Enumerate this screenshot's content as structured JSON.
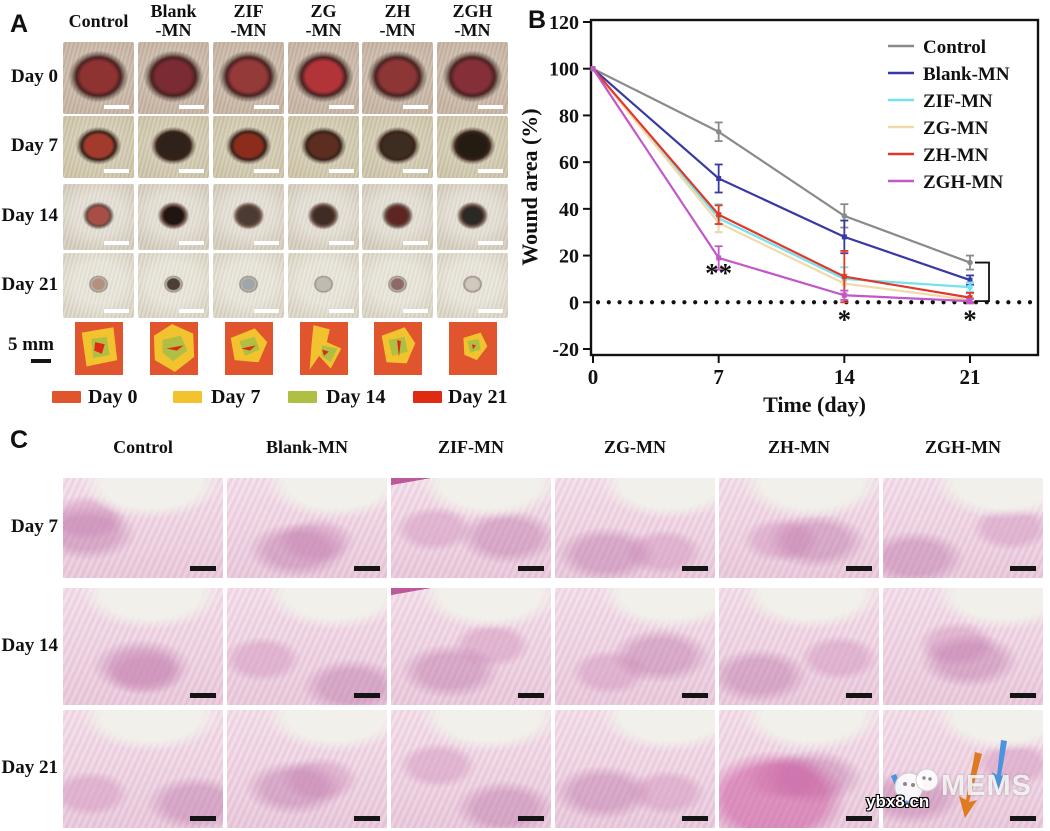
{
  "figure": {
    "panelA": {
      "label": "A",
      "row_labels": [
        "Day 0",
        "Day 7",
        "Day 14",
        "Day 21"
      ],
      "column_labels": [
        [
          "Control",
          ""
        ],
        [
          "Blank",
          "-MN"
        ],
        [
          "ZIF",
          "-MN"
        ],
        [
          "ZG",
          "-MN"
        ],
        [
          "ZH",
          "-MN"
        ],
        [
          "ZGH",
          "-MN"
        ]
      ],
      "scale_label": "5 mm",
      "trace_legend": [
        {
          "label": "Day 0",
          "color": "#e0542e"
        },
        {
          "label": "Day 7",
          "color": "#f2c32e"
        },
        {
          "label": "Day 14",
          "color": "#aebf44"
        },
        {
          "label": "Day 21",
          "color": "#df2b12"
        }
      ]
    },
    "panelB": {
      "label": "B"
    },
    "panelC": {
      "label": "C",
      "row_labels": [
        "Day 7",
        "Day 14",
        "Day 21"
      ],
      "column_labels": [
        "Control",
        "Blank-MN",
        "ZIF-MN",
        "ZG-MN",
        "ZH-MN",
        "ZGH-MN"
      ]
    },
    "watermark": {
      "logo": "panda-logo",
      "brand": "MEMS",
      "site": "ybx8.cn"
    }
  },
  "chart_data": {
    "type": "line",
    "title": "",
    "x": [
      0,
      7,
      14,
      21
    ],
    "xlabel": "Time (day)",
    "ylabel": "Wound area (%)",
    "xticks": [
      0,
      7,
      14,
      21
    ],
    "yticks": [
      -20,
      0,
      20,
      40,
      60,
      80,
      100,
      120
    ],
    "ylim": [
      -20,
      120
    ],
    "grid": false,
    "legend_position": "top-right",
    "baseline": {
      "y": 0,
      "style": "dotted"
    },
    "series": [
      {
        "name": "Control",
        "color": "#8a8a8a",
        "marker": "circle",
        "values": [
          100,
          73,
          37,
          17
        ],
        "errors": [
          0,
          4,
          5,
          3
        ]
      },
      {
        "name": "Blank-MN",
        "color": "#3939a3",
        "marker": "square",
        "values": [
          100,
          53,
          28,
          9.5
        ],
        "errors": [
          0,
          6,
          7,
          2
        ]
      },
      {
        "name": "ZIF-MN",
        "color": "#72e2ec",
        "marker": "square",
        "values": [
          100,
          36,
          10,
          6.5
        ],
        "errors": [
          0,
          6,
          5,
          2
        ]
      },
      {
        "name": "ZG-MN",
        "color": "#f1d9a9",
        "marker": "square",
        "values": [
          100,
          34,
          8,
          1
        ],
        "errors": [
          0,
          4,
          4,
          1
        ]
      },
      {
        "name": "ZH-MN",
        "color": "#e0382b",
        "marker": "square",
        "values": [
          100,
          37.5,
          11,
          2
        ],
        "errors": [
          0,
          4,
          11,
          2
        ]
      },
      {
        "name": "ZGH-MN",
        "color": "#c257c9",
        "marker": "square",
        "values": [
          100,
          19,
          3,
          0.5
        ],
        "errors": [
          0,
          5,
          2,
          1
        ]
      }
    ],
    "annotations": [
      {
        "text": "**",
        "x": 7,
        "y": 13
      },
      {
        "text": "*",
        "x": 14,
        "y": -7
      },
      {
        "text": "*",
        "x": 21,
        "y": -7
      }
    ],
    "bracket": {
      "x": 21,
      "top": 17,
      "bottom": 0.5
    }
  }
}
